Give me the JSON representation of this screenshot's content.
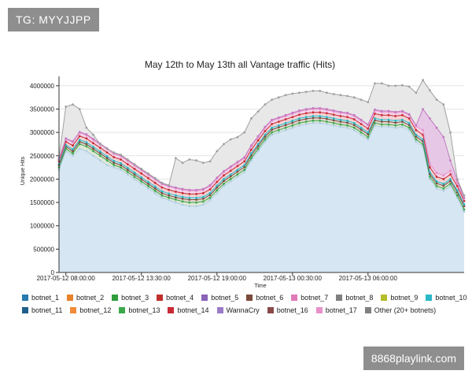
{
  "watermark": "TG: MYYJJPP",
  "footer_link": "8868playlink.com",
  "chart_data": {
    "type": "area",
    "title": "May 12th to May 13th all Vantage traffic (Hits)",
    "xlabel": "Time",
    "ylabel": "Unique Hits",
    "ylim": [
      0,
      4200000
    ],
    "y_ticks": [
      0,
      500000,
      1000000,
      1500000,
      2000000,
      2500000,
      3000000,
      3500000,
      4000000
    ],
    "x_tick_labels": [
      "2017-05-12 08:00:00",
      "2017-05-12 13:30:00",
      "2017-05-12 19:00:00",
      "2017-05-13 00:30:00",
      "2017-05-13 06:00:00"
    ],
    "x_tick_index": [
      1,
      12,
      23,
      34,
      45
    ],
    "grid": true,
    "legend_position": "bottom",
    "series": [
      {
        "name": "botnet_1",
        "color": "#2a7ab0"
      },
      {
        "name": "botnet_2",
        "color": "#e8822a"
      },
      {
        "name": "botnet_3",
        "color": "#2e9e3a"
      },
      {
        "name": "botnet_4",
        "color": "#c0302a"
      },
      {
        "name": "botnet_5",
        "color": "#8a62b8"
      },
      {
        "name": "botnet_6",
        "color": "#7a4a3a"
      },
      {
        "name": "botnet_7",
        "color": "#e07ab8"
      },
      {
        "name": "botnet_8",
        "color": "#7f7f7f"
      },
      {
        "name": "botnet_9",
        "color": "#b5bd2a"
      },
      {
        "name": "botnet_10",
        "color": "#2ab8c8"
      },
      {
        "name": "botnet_11",
        "color": "#1f5e8a"
      },
      {
        "name": "botnet_12",
        "color": "#f08c3a"
      },
      {
        "name": "botnet_13",
        "color": "#3aa84a"
      },
      {
        "name": "botnet_14",
        "color": "#c82a35"
      },
      {
        "name": "WannaCry",
        "color": "#9b7ac8"
      },
      {
        "name": "botnet_16",
        "color": "#8a4a4a"
      },
      {
        "name": "botnet_17",
        "color": "#e890c8"
      },
      {
        "name": "Other (20+ botnets)",
        "color": "#808080"
      }
    ],
    "stack_layers": [
      {
        "series": "botnet_1",
        "fill": "#d6e6f2",
        "stroke": "#b0cde2",
        "values": [
          2200000,
          2600000,
          2500000,
          2650000,
          2600000,
          2500000,
          2400000,
          2300000,
          2250000,
          2200000,
          2100000,
          2000000,
          1900000,
          1800000,
          1700000,
          1600000,
          1550000,
          1500000,
          1450000,
          1420000,
          1420000,
          1450000,
          1550000,
          1700000,
          1850000,
          1950000,
          2050000,
          2150000,
          2400000,
          2600000,
          2800000,
          2950000,
          3000000,
          3050000,
          3100000,
          3150000,
          3180000,
          3200000,
          3200000,
          3180000,
          3150000,
          3120000,
          3100000,
          3050000,
          2950000,
          2850000,
          3150000,
          3120000,
          3120000,
          3100000,
          3120000,
          3050000,
          2800000,
          2700000,
          2000000,
          1800000,
          1750000,
          1850000,
          1600000,
          1300000
        ]
      },
      {
        "series": "botnet_3",
        "fill": "#dfe8d6",
        "stroke": "#3aa84a",
        "values": [
          2250000,
          2650000,
          2550000,
          2750000,
          2700000,
          2600000,
          2500000,
          2400000,
          2300000,
          2250000,
          2150000,
          2050000,
          1950000,
          1850000,
          1750000,
          1650000,
          1600000,
          1560000,
          1520000,
          1500000,
          1500000,
          1520000,
          1600000,
          1760000,
          1900000,
          2000000,
          2100000,
          2200000,
          2450000,
          2650000,
          2850000,
          3000000,
          3050000,
          3100000,
          3150000,
          3200000,
          3230000,
          3250000,
          3250000,
          3230000,
          3200000,
          3170000,
          3150000,
          3100000,
          3000000,
          2900000,
          3200000,
          3170000,
          3170000,
          3150000,
          3170000,
          3100000,
          2850000,
          2750000,
          2050000,
          1850000,
          1800000,
          1900000,
          1650000,
          1350000
        ]
      },
      {
        "series": "botnet_6",
        "fill": "#e4d6d0",
        "stroke": "#7a4a3a",
        "values": [
          2300000,
          2700000,
          2600000,
          2800000,
          2750000,
          2650000,
          2550000,
          2450000,
          2350000,
          2300000,
          2200000,
          2100000,
          2000000,
          1900000,
          1800000,
          1700000,
          1650000,
          1610000,
          1580000,
          1560000,
          1560000,
          1580000,
          1660000,
          1820000,
          1960000,
          2060000,
          2160000,
          2260000,
          2510000,
          2710000,
          2910000,
          3060000,
          3110000,
          3160000,
          3210000,
          3260000,
          3290000,
          3310000,
          3310000,
          3290000,
          3260000,
          3230000,
          3210000,
          3160000,
          3060000,
          2960000,
          3260000,
          3230000,
          3230000,
          3210000,
          3230000,
          3160000,
          2910000,
          2810000,
          2110000,
          1910000,
          1860000,
          1960000,
          1720000,
          1420000
        ]
      },
      {
        "series": "botnet_10",
        "fill": "#d2ecee",
        "stroke": "#2ab8c8",
        "values": [
          2330000,
          2730000,
          2640000,
          2840000,
          2790000,
          2690000,
          2590000,
          2490000,
          2390000,
          2340000,
          2240000,
          2140000,
          2040000,
          1940000,
          1840000,
          1740000,
          1690000,
          1650000,
          1620000,
          1600000,
          1600000,
          1620000,
          1700000,
          1860000,
          2000000,
          2100000,
          2200000,
          2300000,
          2550000,
          2750000,
          2950000,
          3100000,
          3150000,
          3200000,
          3250000,
          3300000,
          3330000,
          3350000,
          3350000,
          3330000,
          3300000,
          3270000,
          3250000,
          3200000,
          3100000,
          3000000,
          3300000,
          3270000,
          3270000,
          3250000,
          3270000,
          3200000,
          2950000,
          2850000,
          2150000,
          1950000,
          1900000,
          2000000,
          1760000,
          1460000
        ]
      },
      {
        "series": "botnet_14",
        "fill": "#f4d2d2",
        "stroke": "#c82a35",
        "values": [
          2380000,
          2800000,
          2720000,
          2920000,
          2870000,
          2770000,
          2670000,
          2570000,
          2470000,
          2420000,
          2320000,
          2220000,
          2120000,
          2020000,
          1920000,
          1820000,
          1770000,
          1730000,
          1700000,
          1680000,
          1680000,
          1700000,
          1780000,
          1940000,
          2080000,
          2180000,
          2280000,
          2380000,
          2630000,
          2830000,
          3030000,
          3180000,
          3230000,
          3280000,
          3330000,
          3380000,
          3410000,
          3430000,
          3430000,
          3410000,
          3380000,
          3350000,
          3330000,
          3280000,
          3180000,
          3080000,
          3400000,
          3370000,
          3370000,
          3350000,
          3370000,
          3300000,
          3050000,
          2950000,
          2250000,
          2050000,
          2000000,
          2100000,
          1850000,
          1530000
        ]
      },
      {
        "series": "botnet_17",
        "fill": "#f2d4ea",
        "stroke": "#e890c8",
        "values": [
          2420000,
          2850000,
          2790000,
          2990000,
          2940000,
          2840000,
          2740000,
          2640000,
          2540000,
          2490000,
          2390000,
          2290000,
          2190000,
          2090000,
          1990000,
          1890000,
          1840000,
          1800000,
          1770000,
          1750000,
          1750000,
          1770000,
          1850000,
          2010000,
          2150000,
          2250000,
          2350000,
          2450000,
          2700000,
          2900000,
          3100000,
          3250000,
          3300000,
          3350000,
          3400000,
          3450000,
          3480000,
          3500000,
          3500000,
          3480000,
          3450000,
          3420000,
          3400000,
          3350000,
          3250000,
          3150000,
          3470000,
          3440000,
          3440000,
          3420000,
          3440000,
          3370000,
          3130000,
          3050000,
          2330000,
          2130000,
          2080000,
          2180000,
          1920000,
          1580000
        ]
      },
      {
        "series": "WannaCry",
        "fill": "#e6c8e6",
        "stroke": "#c27ac2",
        "values": [
          2430000,
          2870000,
          2810000,
          3010000,
          2960000,
          2860000,
          2760000,
          2660000,
          2560000,
          2510000,
          2410000,
          2310000,
          2210000,
          2110000,
          2010000,
          1910000,
          1860000,
          1820000,
          1790000,
          1770000,
          1770000,
          1790000,
          1870000,
          2030000,
          2170000,
          2270000,
          2370000,
          2470000,
          2720000,
          2920000,
          3120000,
          3270000,
          3320000,
          3370000,
          3420000,
          3470000,
          3500000,
          3520000,
          3520000,
          3500000,
          3470000,
          3440000,
          3420000,
          3370000,
          3270000,
          3170000,
          3490000,
          3460000,
          3460000,
          3440000,
          3460000,
          3390000,
          3150000,
          3500000,
          3300000,
          3100000,
          2900000,
          2400000,
          1980000,
          1600000
        ]
      },
      {
        "series": "Other (20+ botnets)",
        "fill": "#e8e8e8",
        "stroke": "#a0a0a0",
        "values": [
          2450000,
          3550000,
          3600000,
          3500000,
          3100000,
          2950000,
          2750000,
          2650000,
          2570000,
          2520000,
          2420000,
          2320000,
          2220000,
          2120000,
          2020000,
          1920000,
          1870000,
          2450000,
          2350000,
          2420000,
          2400000,
          2350000,
          2380000,
          2600000,
          2750000,
          2850000,
          2900000,
          3000000,
          3300000,
          3450000,
          3600000,
          3700000,
          3750000,
          3800000,
          3830000,
          3850000,
          3870000,
          3890000,
          3890000,
          3850000,
          3820000,
          3800000,
          3780000,
          3750000,
          3700000,
          3650000,
          4050000,
          4050000,
          4000000,
          4000000,
          4010000,
          3980000,
          3850000,
          4120000,
          3900000,
          3700000,
          3600000,
          3000000,
          2000000,
          1650000
        ]
      }
    ]
  }
}
